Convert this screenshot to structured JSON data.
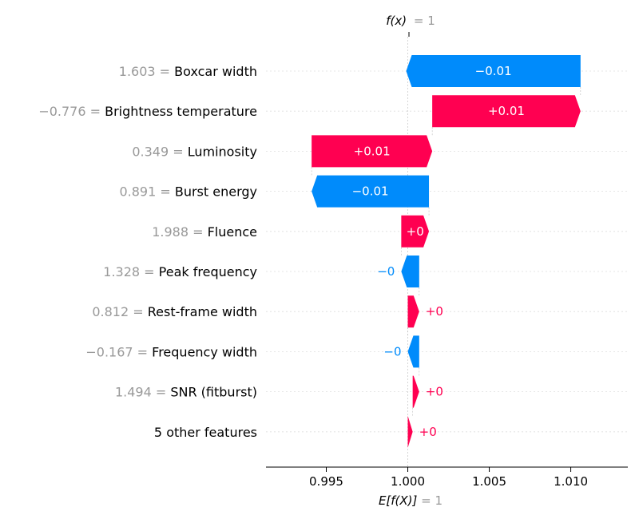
{
  "chart_data": {
    "type": "waterfall",
    "top_label": {
      "name": "f(x)",
      "value": "1"
    },
    "bottom_label": {
      "name": "E[f(X)]",
      "value": "1"
    },
    "xlim": [
      0.9913,
      1.0135
    ],
    "xticks": [
      {
        "value": 0.995,
        "label": "0.995"
      },
      {
        "value": 1.0,
        "label": "1.000"
      },
      {
        "value": 1.005,
        "label": "1.005"
      },
      {
        "value": 1.01,
        "label": "1.010"
      }
    ],
    "colors": {
      "positive": "#ff0051",
      "negative": "#008bfb",
      "value_text": "#999999"
    },
    "features": [
      {
        "value": "1.603",
        "name": "Boxcar width",
        "start": 1.0106,
        "end": 0.9999,
        "label": "−0.01",
        "label_inside": true
      },
      {
        "value": "−0.776",
        "name": "Brightness temperature",
        "start": 1.0015,
        "end": 1.0106,
        "label": "+0.01",
        "label_inside": true
      },
      {
        "value": "0.349",
        "name": "Luminosity",
        "start": 0.9941,
        "end": 1.0015,
        "label": "+0.01",
        "label_inside": true
      },
      {
        "value": "0.891",
        "name": "Burst energy",
        "start": 1.0013,
        "end": 0.9941,
        "label": "−0.01",
        "label_inside": true
      },
      {
        "value": "1.988",
        "name": "Fluence",
        "start": 0.9996,
        "end": 1.0013,
        "label": "+0",
        "label_inside": true
      },
      {
        "value": "1.328",
        "name": "Peak frequency",
        "start": 1.0007,
        "end": 0.9996,
        "label": "−0",
        "label_inside": false
      },
      {
        "value": "0.812",
        "name": "Rest-frame width",
        "start": 1.0,
        "end": 1.0007,
        "label": "+0",
        "label_inside": false
      },
      {
        "value": "−0.167",
        "name": "Frequency width",
        "start": 1.0007,
        "end": 1.0,
        "label": "−0",
        "label_inside": false
      },
      {
        "value": "1.494",
        "name": "SNR (fitburst)",
        "start": 1.0003,
        "end": 1.0007,
        "label": "+0",
        "label_inside": false
      },
      {
        "value": "",
        "name": "5 other features",
        "start": 1.0,
        "end": 1.0003,
        "label": "+0",
        "label_inside": false
      }
    ]
  }
}
